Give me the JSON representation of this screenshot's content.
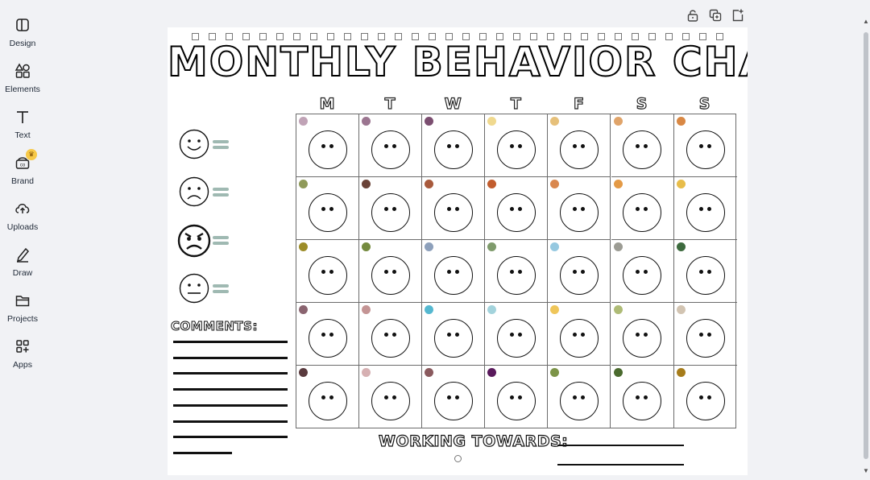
{
  "sidebar": {
    "items": [
      {
        "label": "Design",
        "icon": "layout-icon"
      },
      {
        "label": "Elements",
        "icon": "shapes-icon"
      },
      {
        "label": "Text",
        "icon": "text-T-icon"
      },
      {
        "label": "Brand",
        "icon": "brand-icon",
        "badge": "crown"
      },
      {
        "label": "Uploads",
        "icon": "cloud-upload-icon"
      },
      {
        "label": "Draw",
        "icon": "pen-icon"
      },
      {
        "label": "Projects",
        "icon": "folder-icon"
      },
      {
        "label": "Apps",
        "icon": "apps-grid-icon"
      }
    ]
  },
  "toolbar": {
    "icons": [
      "lock-icon",
      "duplicate-page-icon",
      "add-page-icon"
    ]
  },
  "chart": {
    "title": "MONTHLY BEHAVIOR CHART",
    "days": [
      "M",
      "T",
      "W",
      "T",
      "F",
      "S",
      "S"
    ],
    "checkbox_count": 32,
    "legend": [
      "happy-face",
      "sad-face",
      "angry-face",
      "neutral-face"
    ],
    "dot_colors": [
      [
        "#c0a3b6",
        "#9b7590",
        "#7b4e70",
        "#f0d98f",
        "#e6c07a",
        "#e0a46a",
        "#d98844"
      ],
      [
        "#8f9a5a",
        "#6a4338",
        "#a85a3c",
        "#c25d2e",
        "#d9874e",
        "#e49a46",
        "#e8bd4a"
      ],
      [
        "#9c8c28",
        "#748a3e",
        "#8da0bb",
        "#7f9b6c",
        "#95c8e0",
        "#9c9c94",
        "#3d6a3e"
      ],
      [
        "#8a6470",
        "#c49494",
        "#55b8d0",
        "#a3d3dc",
        "#efc65a",
        "#aebb76",
        "#d2c4b2"
      ],
      [
        "#5a3a3e",
        "#d6b0b2",
        "#8a5a5e",
        "#5a1a5c",
        "#7c9448",
        "#4a6a2e",
        "#a67c1a"
      ]
    ],
    "comments_label": "COMMENTS:",
    "comment_lines": 8,
    "working_towards_label": "WORKING TOWARDS:"
  }
}
